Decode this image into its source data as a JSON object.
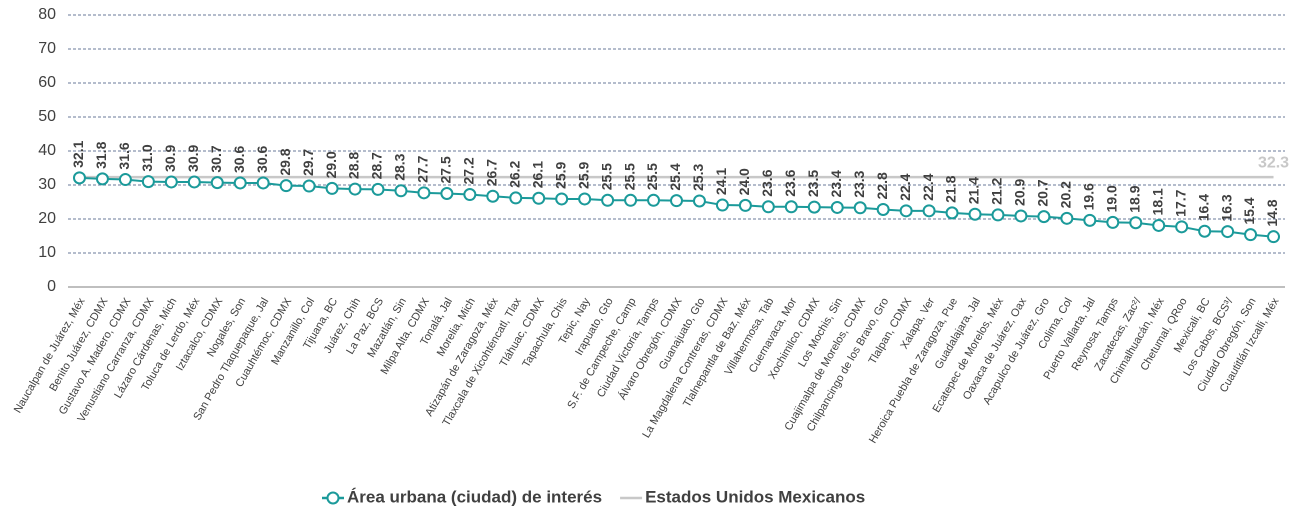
{
  "chart_data": {
    "type": "line",
    "categories": [
      "Naucalpan de Juárez, Méx",
      "Benito Juárez, CDMX",
      "Gustavo A. Madero, CDMX",
      "Venustiano Carranza, CDMX",
      "Lázaro Cárdenas, Mich",
      "Toluca de Lerdo, Méx",
      "Iztacalco, CDMX",
      "Nogales, Son",
      "San Pedro Tlaquepaque, Jal",
      "Cuauhtémoc, CDMX",
      "Manzanillo, Col",
      "Tijuana, BC",
      "Juárez, Chih",
      "La Paz, BCS",
      "Mazatlán, Sin",
      "Milpa Alta, CDMX",
      "Tonalá, Jal",
      "Morelia, Mich",
      "Atizapán de Zaragoza, Méx",
      "Tlaxcala de Xicohténcatl, Tlax",
      "Tláhuac, CDMX",
      "Tapachula, Chis",
      "Tepic, Nay",
      "Irapuato, Gto",
      "S.F. de Campeche, Camp",
      "Ciudad Victoria, Tamps",
      "Álvaro Obregón, CDMX",
      "Guanajuato, Gto",
      "La Magdalena Contreras, CDMX",
      "Tlalnepantla de Baz, Méx",
      "Villahermosa, Tab",
      "Cuernavaca, Mor",
      "Xochimilco, CDMX",
      "Los Mochis, Sin",
      "Cuajimalpa de Morelos, CDMX",
      "Chilpancingo de los Bravo, Gro",
      "Tlalpan, CDMX",
      "Xalapa, Ver",
      "Heroica Puebla de Zaragoza, Pue",
      "Guadalajara, Jal",
      "Ecatepec de Morelos, Méx",
      "Oaxaca de Juárez, Oax",
      "Acapulco de Juárez, Gro",
      "Colima, Col",
      "Puerto Vallarta, Jal",
      "Reynosa, Tamps",
      "Zacatecas, Zac²/",
      "Chimalhuacán, Méx",
      "Chetumal, QRoo",
      "Mexicali, BC",
      "Los Cabos, BCS³/",
      "Ciudad Obregón, Son",
      "Cuautitlán Izcalli, Méx"
    ],
    "series": [
      {
        "name": "Área urbana (ciudad) de interés",
        "color": "#1b9a9a",
        "values": [
          32.1,
          31.8,
          31.6,
          31.0,
          30.9,
          30.9,
          30.7,
          30.6,
          30.6,
          29.8,
          29.7,
          29.0,
          28.8,
          28.7,
          28.3,
          27.7,
          27.5,
          27.2,
          26.7,
          26.2,
          26.1,
          25.9,
          25.9,
          25.5,
          25.5,
          25.5,
          25.4,
          25.3,
          24.1,
          24.0,
          23.6,
          23.6,
          23.5,
          23.4,
          23.3,
          22.8,
          22.4,
          22.4,
          21.8,
          21.4,
          21.2,
          20.9,
          20.7,
          20.2,
          19.6,
          19.0,
          18.9,
          18.1,
          17.7,
          16.4,
          16.3,
          15.4,
          14.8
        ],
        "value_labels": [
          "32.1",
          "31.8",
          "31.6",
          "31.0",
          "30.9",
          "30.9",
          "30.7",
          "30.6",
          "30.6",
          "29.8",
          "29.7",
          "29.0",
          "28.8",
          "28.7",
          "28.3",
          "27.7",
          "27.5",
          "27.2",
          "26.7",
          "26.2",
          "26.1",
          "25.9",
          "25.9",
          "25.5",
          "25.5",
          "25.5",
          "25.4",
          "25.3",
          "24.1",
          "24.0",
          "23.6",
          "23.6",
          "23.5",
          "23.4",
          "23.3",
          "22.8",
          "22.4",
          "22.4",
          "21.8",
          "21.4",
          "21.2",
          "20.9",
          "20.7",
          "20.2",
          "19.6",
          "19.0",
          "18.9",
          "18.1",
          "17.7",
          "16.4",
          "16.3",
          "15.4",
          "14.8"
        ]
      },
      {
        "name": "Estados Unidos Mexicanos",
        "color": "#c8c8c8",
        "values": [
          32.3,
          32.3,
          32.3,
          32.3,
          32.3,
          32.3,
          32.3,
          32.3,
          32.3,
          32.3,
          32.3,
          32.3,
          32.3,
          32.3,
          32.3,
          32.3,
          32.3,
          32.3,
          32.3,
          32.3,
          32.3,
          32.3,
          32.3,
          32.3,
          32.3,
          32.3,
          32.3,
          32.3,
          32.3,
          32.3,
          32.3,
          32.3,
          32.3,
          32.3,
          32.3,
          32.3,
          32.3,
          32.3,
          32.3,
          32.3,
          32.3,
          32.3,
          32.3,
          32.3,
          32.3,
          32.3,
          32.3,
          32.3,
          32.3,
          32.3,
          32.3,
          32.3,
          32.3
        ]
      }
    ],
    "ylim": [
      0,
      80
    ],
    "yticks": [
      0,
      10,
      20,
      30,
      40,
      50,
      60,
      70,
      80
    ],
    "grid": true,
    "legend": "bottom"
  }
}
